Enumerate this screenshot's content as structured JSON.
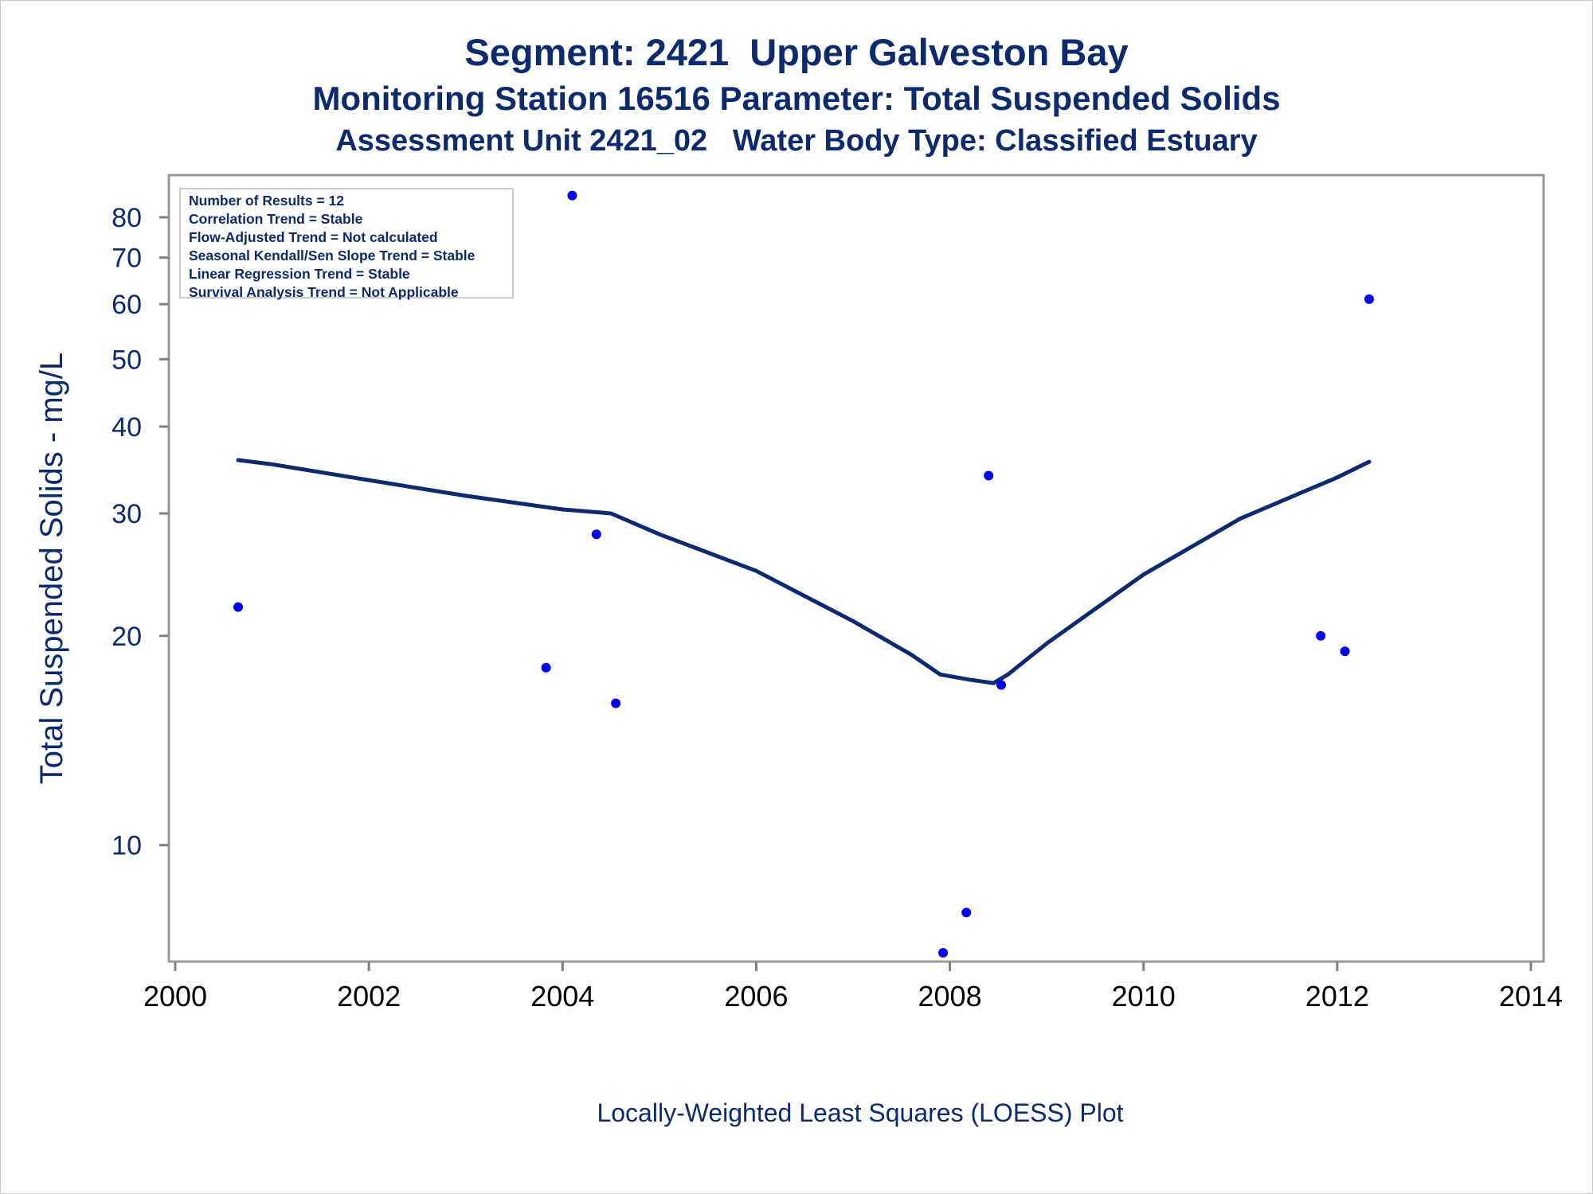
{
  "titles": {
    "line1": "Segment: 2421  Upper Galveston Bay",
    "line2": "Monitoring Station 16516 Parameter: Total Suspended Solids",
    "line3": "Assessment Unit 2421_02   Water Body Type: Classified Estuary"
  },
  "stats": [
    "Number of Results = 12",
    "Correlation Trend = Stable",
    "Flow-Adjusted Trend = Not calculated",
    "Seasonal Kendall/Sen Slope Trend = Stable",
    "Linear Regression Trend = Stable",
    "Survival Analysis Trend = Not Applicable"
  ],
  "colors": {
    "text": "#0b2a6f",
    "points": "#0000ff",
    "loess": "#0b2a6f",
    "axis": "#808080"
  },
  "chart_data": {
    "type": "scatter",
    "ylabel": "Total Suspended Solids - mg/L",
    "xlabel": "Locally-Weighted Least Squares (LOESS) Plot",
    "yscale": "log",
    "xlim": [
      2000,
      2014
    ],
    "ylim": [
      6.8,
      92
    ],
    "xticks": [
      2000,
      2002,
      2004,
      2006,
      2008,
      2010,
      2012,
      2014
    ],
    "xtick_labels": [
      "2000",
      "2002",
      "2004",
      "2006",
      "2008",
      "2010",
      "2012",
      "2014"
    ],
    "yticks": [
      10,
      20,
      30,
      40,
      50,
      60,
      70,
      80
    ],
    "ytick_labels": [
      "10",
      "20",
      "30",
      "40",
      "50",
      "60",
      "70",
      "80"
    ],
    "grid": false,
    "series": [
      {
        "kind": "points",
        "x": [
          2000.65,
          2003.83,
          2004.1,
          2004.35,
          2004.55,
          2007.93,
          2008.17,
          2008.4,
          2008.53,
          2011.83,
          2012.08,
          2012.33
        ],
        "y": [
          22,
          18,
          86,
          28,
          16,
          7,
          8,
          34,
          17,
          20,
          19,
          61
        ]
      },
      {
        "kind": "loess",
        "x": [
          2000.65,
          2001.0,
          2002.0,
          2003.0,
          2004.0,
          2004.5,
          2005.0,
          2006.0,
          2007.0,
          2007.6,
          2007.9,
          2008.2,
          2008.45,
          2008.6,
          2009.0,
          2010.0,
          2011.0,
          2012.0,
          2012.33
        ],
        "y": [
          35.8,
          35.3,
          33.5,
          31.8,
          30.4,
          30.0,
          28.0,
          24.8,
          21.0,
          18.8,
          17.6,
          17.3,
          17.1,
          17.6,
          19.5,
          24.5,
          29.5,
          33.8,
          35.6
        ]
      }
    ]
  }
}
